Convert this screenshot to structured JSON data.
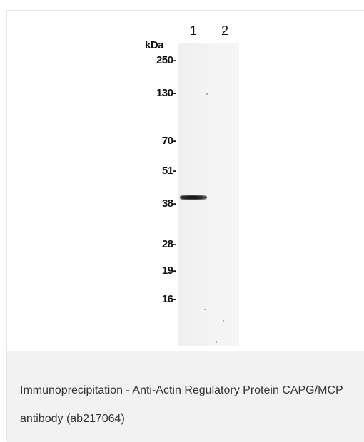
{
  "figure": {
    "lane_labels": [
      "1",
      "2"
    ],
    "unit_label": "kDa",
    "markers": [
      "250",
      "130",
      "70",
      "51",
      "38",
      "28",
      "19",
      "16"
    ]
  },
  "caption": {
    "text": "Immunoprecipitation - Anti-Actin Regulatory Protein CAPG/MCP antibody (ab217064)"
  }
}
